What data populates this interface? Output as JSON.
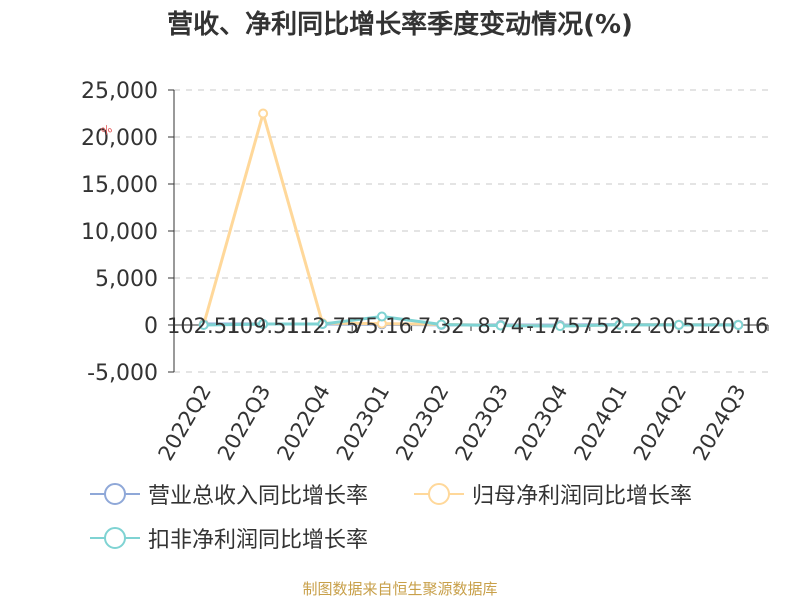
{
  "title": "营收、净利同比增长率季度变动情况(%)",
  "source": "制图数据来自恒生聚源数据库",
  "colors": {
    "revenue": "#8fa8d8",
    "profit": "#ffd89a",
    "deducted": "#7fd3d3",
    "grid": "#c8c8c8",
    "axis": "#333333",
    "marker_annotation": "#e05050"
  },
  "chart_data": {
    "type": "line",
    "x": [
      "2022Q2",
      "2022Q3",
      "2022Q4",
      "2023Q1",
      "2023Q2",
      "2023Q3",
      "2023Q4",
      "2024Q1",
      "2024Q2",
      "2024Q3"
    ],
    "series": [
      {
        "name": "营业总收入同比增长率",
        "color_key": "revenue",
        "values": [
          102.51,
          109.51,
          112.75,
          75.16,
          7.32,
          8.74,
          -17.57,
          52.2,
          20.51,
          20.16
        ]
      },
      {
        "name": "归母净利润同比增长率",
        "color_key": "profit",
        "values": [
          50,
          22500,
          200,
          150,
          60,
          -50,
          -100,
          30,
          20,
          10
        ]
      },
      {
        "name": "扣非净利润同比增长率",
        "color_key": "deducted",
        "values": [
          0,
          100,
          100,
          900,
          50,
          -60,
          -120,
          20,
          15,
          5
        ]
      }
    ],
    "data_labels": [
      "102.51",
      "109.51",
      "112.75",
      "75.16",
      "7.32",
      "8.74",
      "-17.57",
      "52.2",
      "20.51",
      "20.16"
    ],
    "y_ticks": [
      -5000,
      0,
      5000,
      10000,
      15000,
      20000,
      25000
    ],
    "y_tick_labels": [
      "-5,000",
      "0",
      "5,000",
      "10,000",
      "15,000",
      "20,000",
      "25,000"
    ],
    "ylim": [
      -5000,
      25000
    ],
    "grid": true,
    "legend": "bottom",
    "marker_annotation": "%"
  }
}
